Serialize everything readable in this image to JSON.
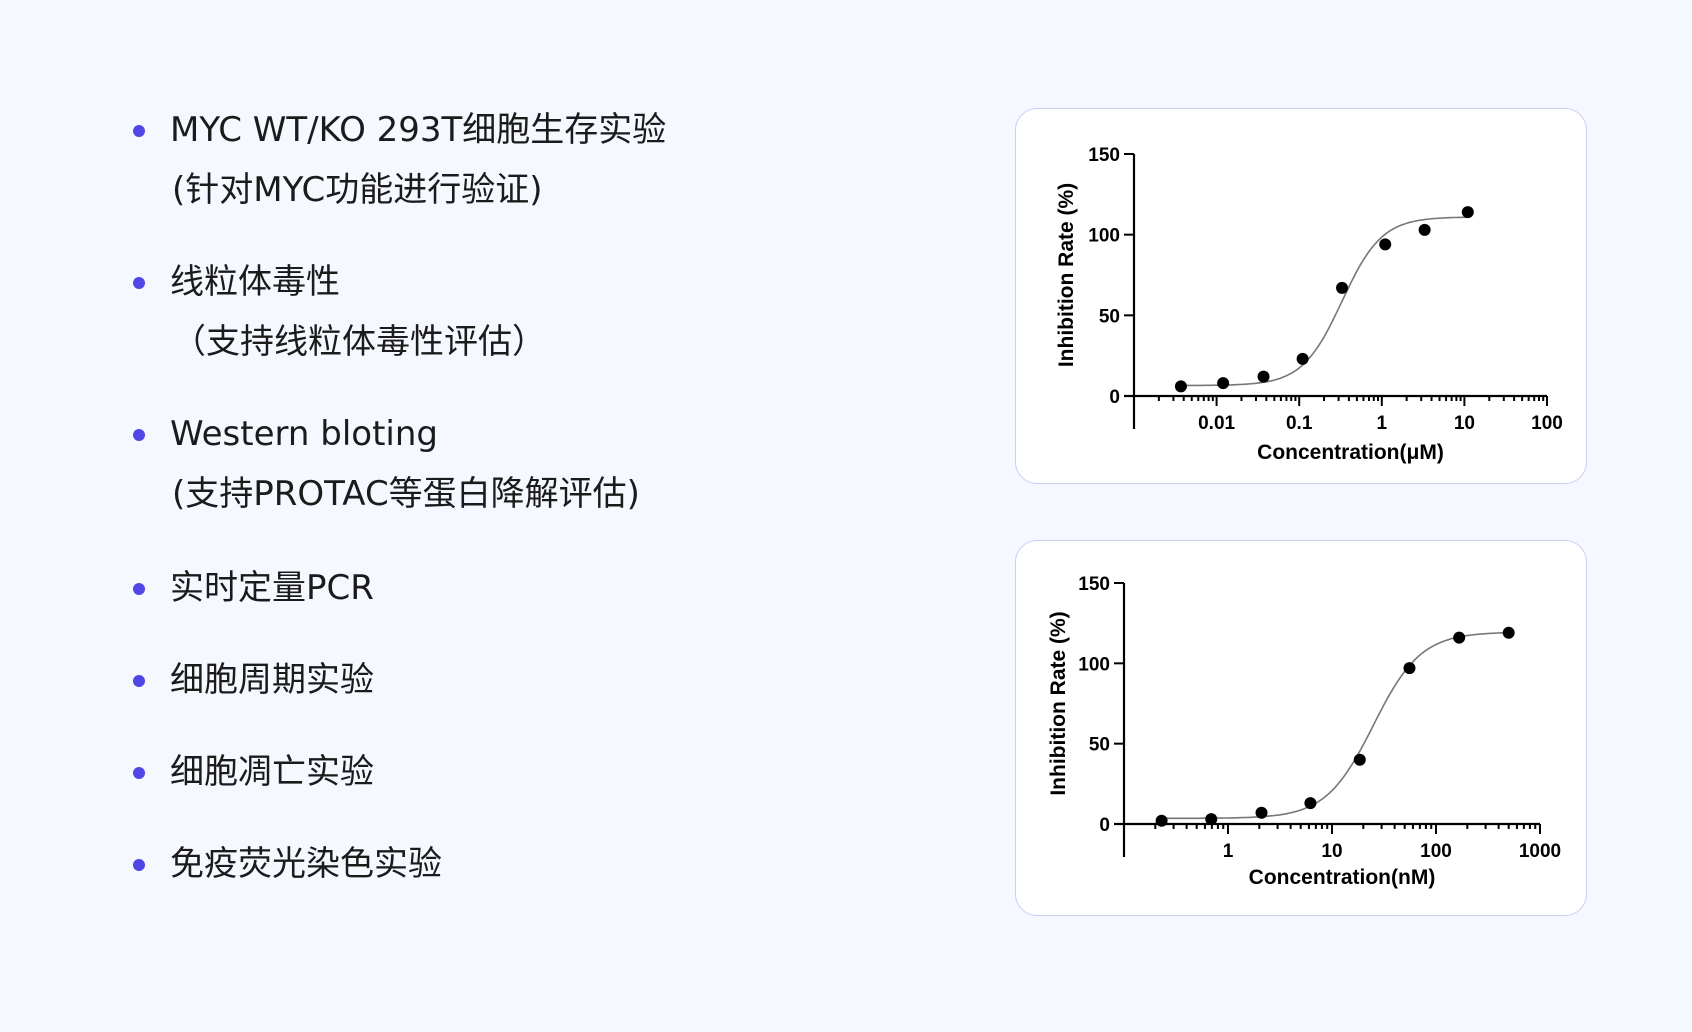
{
  "features": [
    {
      "title": "MYC WT/KO 293T细胞生存实验",
      "note": "(针对MYC功能进行验证)"
    },
    {
      "title": "线粒体毒性",
      "note": "（支持线粒体毒性评估）"
    },
    {
      "title": "Western bloting",
      "note": "(支持PROTAC等蛋白降解评估)"
    },
    {
      "title": "实时定量PCR",
      "note": ""
    },
    {
      "title": "细胞周期实验",
      "note": ""
    },
    {
      "title": "细胞凋亡实验",
      "note": ""
    },
    {
      "title": "免疫荧光染色实验",
      "note": ""
    }
  ],
  "colors": {
    "bullet": "#4f46e5",
    "card_border": "#c9cef7",
    "background": "#f5f8ff",
    "curve": "#777777"
  },
  "chart_data": [
    {
      "type": "scatter",
      "title": "",
      "xlabel": "Concentration(μM)",
      "ylabel": "Inhibition Rate (%)",
      "x_scale": "log",
      "xlim": [
        0.001,
        100
      ],
      "ylim": [
        0,
        150
      ],
      "x_ticks": [
        0.01,
        0.1,
        1,
        10,
        100
      ],
      "x_tick_labels": [
        "0.01",
        "0.1",
        "1",
        "10",
        "100"
      ],
      "y_ticks": [
        0,
        50,
        100,
        150
      ],
      "y_tick_labels": [
        "0",
        "50",
        "100",
        "150"
      ],
      "series": [
        {
          "x": [
            0.0037,
            0.012,
            0.037,
            0.11,
            0.33,
            1.1,
            3.3,
            11
          ],
          "y": [
            6,
            8,
            12,
            23,
            67,
            94,
            103,
            114
          ]
        }
      ],
      "fit": {
        "bottom": 6.5,
        "top": 111,
        "ic50": 0.33,
        "hill": 1.8
      }
    },
    {
      "type": "scatter",
      "title": "",
      "xlabel": "Concentration(nM)",
      "ylabel": "Inhibition Rate (%)",
      "x_scale": "log",
      "xlim": [
        0.1,
        1000
      ],
      "ylim": [
        0,
        150
      ],
      "x_ticks": [
        1,
        10,
        100,
        1000
      ],
      "x_tick_labels": [
        "1",
        "10",
        "100",
        "1000"
      ],
      "y_ticks": [
        0,
        50,
        100,
        150
      ],
      "y_tick_labels": [
        "0",
        "50",
        "100",
        "150"
      ],
      "series": [
        {
          "x": [
            0.23,
            0.69,
            2.1,
            6.2,
            18.5,
            55.6,
            167,
            500
          ],
          "y": [
            2,
            3,
            7,
            13,
            40,
            97,
            116,
            119
          ]
        }
      ],
      "fit": {
        "bottom": 3.5,
        "top": 119.5,
        "ic50": 25,
        "hill": 1.9
      }
    }
  ]
}
